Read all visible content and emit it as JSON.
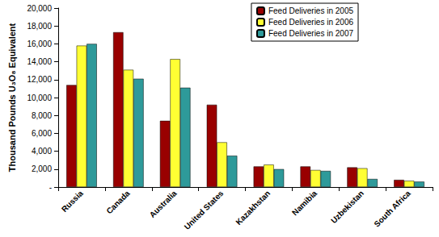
{
  "chart_data": {
    "type": "bar",
    "y_label": "Thousand Pounds U₃O₈ Equivalent",
    "categories": [
      "Russia",
      "Canada",
      "Australia",
      "United States",
      "Kazakhstan",
      "Namibia",
      "Uzbekistan",
      "South Africa"
    ],
    "series": [
      {
        "name": "Feed Deliveries in 2005",
        "color": "#990000",
        "values": [
          11400,
          17300,
          7400,
          9200,
          2300,
          2300,
          2200,
          800
        ]
      },
      {
        "name": "Feed Deliveries in 2006",
        "color": "#FFFF33",
        "values": [
          15800,
          13100,
          14300,
          5000,
          2500,
          1900,
          2100,
          700
        ]
      },
      {
        "name": "Feed Deliveries in 2007",
        "color": "#2E9A9A",
        "values": [
          16000,
          12100,
          11100,
          3500,
          2000,
          1800,
          900,
          600
        ]
      }
    ],
    "ylim": [
      0,
      20000
    ],
    "yticks": [
      {
        "value": 0,
        "label": "-"
      },
      {
        "value": 2000,
        "label": "2,000"
      },
      {
        "value": 4000,
        "label": "4,000"
      },
      {
        "value": 6000,
        "label": "6,000"
      },
      {
        "value": 8000,
        "label": "8,000"
      },
      {
        "value": 10000,
        "label": "10,000"
      },
      {
        "value": 12000,
        "label": "12,000"
      },
      {
        "value": 14000,
        "label": "14,000"
      },
      {
        "value": 16000,
        "label": "16,000"
      },
      {
        "value": 18000,
        "label": "18,000"
      },
      {
        "value": 20000,
        "label": "20,000"
      }
    ],
    "grid": false,
    "legend": "upper right",
    "data_labels": false
  }
}
